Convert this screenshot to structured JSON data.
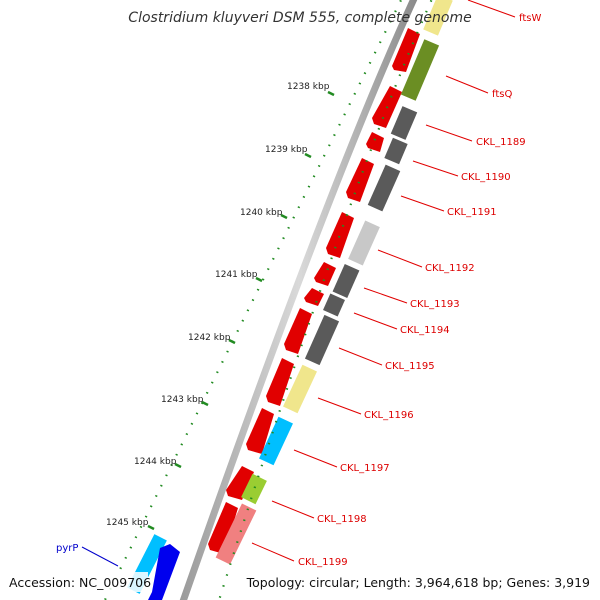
{
  "map": {
    "title": "Clostridium kluyveri DSM 555, complete genome",
    "accession": "Accession: NC_009706",
    "topology": "Topology: circular; Length: 3,964,618 bp; Genes: 3,919"
  },
  "ticks": [
    "1238 kbp",
    "1239 kbp",
    "1240 kbp",
    "1241 kbp",
    "1242 kbp",
    "1243 kbp",
    "1244 kbp",
    "1245 kbp"
  ],
  "genes": [
    {
      "label": "ftsW",
      "color": "#e10000"
    },
    {
      "label": "ftsQ",
      "color": "#e10000"
    },
    {
      "label": "CKL_1189",
      "color": "#e10000"
    },
    {
      "label": "CKL_1190",
      "color": "#e10000"
    },
    {
      "label": "CKL_1191",
      "color": "#e10000"
    },
    {
      "label": "CKL_1192",
      "color": "#e10000"
    },
    {
      "label": "CKL_1193",
      "color": "#e10000"
    },
    {
      "label": "CKL_1194",
      "color": "#e10000"
    },
    {
      "label": "CKL_1195",
      "color": "#e10000"
    },
    {
      "label": "CKL_1196",
      "color": "#e10000"
    },
    {
      "label": "CKL_1197",
      "color": "#e10000"
    },
    {
      "label": "CKL_1198",
      "color": "#e10000"
    },
    {
      "label": "CKL_1199",
      "color": "#e10000"
    },
    {
      "label": "pyrP",
      "color": "#0000cc"
    }
  ],
  "colors": {
    "strand": "#e10000",
    "cog_olive": "#6b8e23",
    "cog_dark_gray": "#5a5a5a",
    "cog_light_gray": "#c8c8c8",
    "cog_khaki": "#f0e68c",
    "cog_cyan": "#00bfff",
    "cog_lime": "#9acd32",
    "cog_salmon": "#f08080",
    "blue_gene": "#0000ee",
    "tick_green": "#228b22"
  }
}
